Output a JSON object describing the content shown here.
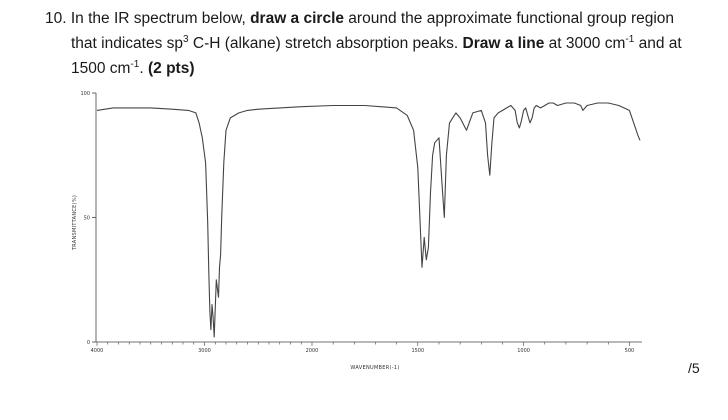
{
  "question": {
    "number": "10.",
    "line1_a": " In the IR spectrum below, ",
    "line1_b": "draw a circle",
    "line1_c": " around the approximate functional group region",
    "line2_a": "that indicates sp",
    "line2_sup1": "3",
    "line2_b": " C-H (alkane) stretch absorption peaks. ",
    "line2_c": "Draw a line",
    "line2_d": " at 3000 cm",
    "line2_sup2": "-1",
    "line2_e": " and at",
    "line3_a": "1500 cm",
    "line3_sup": "-1",
    "line3_b": ". ",
    "line3_points": "(2 pts)"
  },
  "score": "/5",
  "chart_data": {
    "type": "line",
    "xlabel": "WAVENUMBER(-1)",
    "ylabel": "TRANSMITTANCE(%)",
    "x_direction": "decreasing",
    "xlim": [
      4000,
      450
    ],
    "ylim": [
      0,
      100
    ],
    "x_ticks": [
      4000,
      3000,
      2000,
      1500,
      1000,
      500
    ],
    "x_tick_labels": [
      "4000",
      "3000",
      "2000",
      "1500",
      "1000",
      "500"
    ],
    "y_ticks": [
      0,
      50,
      100
    ],
    "y_tick_labels": [
      "0",
      "50",
      "100"
    ],
    "series": [
      {
        "x": [
          4000,
          3850,
          3700,
          3500,
          3300,
          3150,
          3080,
          3050,
          3020,
          2990,
          2970,
          2960,
          2950,
          2940,
          2930,
          2920,
          2910,
          2890,
          2870,
          2860,
          2850,
          2840,
          2820,
          2800,
          2760,
          2720,
          2680,
          2600,
          2500,
          2300,
          2100,
          1900,
          1750,
          1600,
          1550,
          1520,
          1500,
          1480,
          1470,
          1460,
          1450,
          1440,
          1430,
          1420,
          1400,
          1385,
          1375,
          1365,
          1350,
          1320,
          1300,
          1270,
          1240,
          1200,
          1180,
          1170,
          1160,
          1150,
          1140,
          1120,
          1100,
          1080,
          1060,
          1040,
          1030,
          1020,
          1010,
          1000,
          990,
          980,
          970,
          960,
          950,
          940,
          920,
          900,
          880,
          860,
          840,
          800,
          760,
          730,
          720,
          700,
          650,
          600,
          550,
          500,
          480,
          460,
          450
        ],
        "y": [
          93,
          94,
          94,
          94,
          93.5,
          93,
          92,
          88,
          82,
          72,
          48,
          28,
          12,
          5,
          15,
          10,
          2,
          25,
          18,
          30,
          35,
          50,
          72,
          85,
          90,
          91,
          92,
          93,
          93.5,
          94,
          94.5,
          95,
          95,
          94,
          91,
          85,
          70,
          30,
          42,
          33,
          38,
          60,
          75,
          80,
          82,
          63,
          50,
          75,
          88,
          92,
          90,
          85,
          92,
          93,
          88,
          75,
          67,
          80,
          90,
          92,
          93,
          94,
          95,
          93,
          88,
          86,
          89,
          93,
          94,
          91,
          88,
          90,
          94,
          95,
          94,
          95,
          96,
          96,
          95,
          96,
          96,
          95,
          93,
          95,
          96,
          96,
          95,
          93,
          88,
          83,
          81
        ]
      }
    ]
  }
}
